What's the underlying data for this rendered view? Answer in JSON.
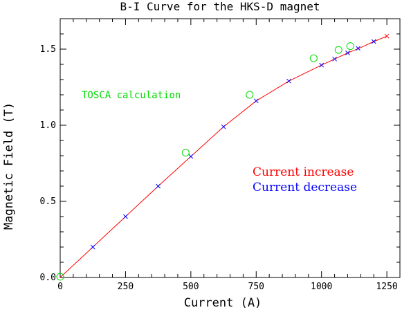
{
  "chart_data": {
    "type": "scatter",
    "title": "B-I Curve for the HKS-D magnet",
    "xlabel": "Current (A)",
    "ylabel": "Magnetic Field (T)",
    "xlim": [
      0,
      1300
    ],
    "ylim": [
      0,
      1.7
    ],
    "x_ticks": [
      0,
      250,
      500,
      750,
      1000,
      1250
    ],
    "x_tick_labels": [
      "0",
      "250",
      "500",
      "750",
      "1000",
      "1250"
    ],
    "y_ticks": [
      0,
      0.5,
      1.0,
      1.5
    ],
    "y_tick_labels": [
      "0.0",
      "0.5",
      "1.0",
      "1.5"
    ],
    "annotations": [
      {
        "text": "TOSCA calculation",
        "color": "#00dd00"
      },
      {
        "text": "Current increase",
        "color": "#ff0000"
      },
      {
        "text": "Current decrease",
        "color": "#0000ff"
      }
    ],
    "series": [
      {
        "name": "Current increase",
        "color": "#ff0000",
        "marker": "line",
        "x": [
          0,
          125,
          250,
          375,
          500,
          625,
          750,
          875,
          1000,
          1050,
          1100,
          1150,
          1200,
          1250
        ],
        "y": [
          0,
          0.2,
          0.4,
          0.6,
          0.795,
          0.99,
          1.16,
          1.29,
          1.395,
          1.435,
          1.475,
          1.51,
          1.55,
          1.585
        ]
      },
      {
        "name": "Current decrease",
        "color": "#0000ff",
        "marker": "x",
        "x": [
          125,
          250,
          375,
          500,
          625,
          750,
          875,
          1000,
          1050,
          1100,
          1140,
          1200
        ],
        "y": [
          0.2,
          0.4,
          0.6,
          0.795,
          0.99,
          1.16,
          1.29,
          1.395,
          1.435,
          1.475,
          1.505,
          1.55
        ]
      },
      {
        "name": "TOSCA calculation",
        "color": "#00dd00",
        "marker": "circle",
        "x": [
          0,
          480,
          725,
          970,
          1065,
          1110
        ],
        "y": [
          0.005,
          0.82,
          1.2,
          1.44,
          1.495,
          1.52
        ]
      }
    ]
  }
}
